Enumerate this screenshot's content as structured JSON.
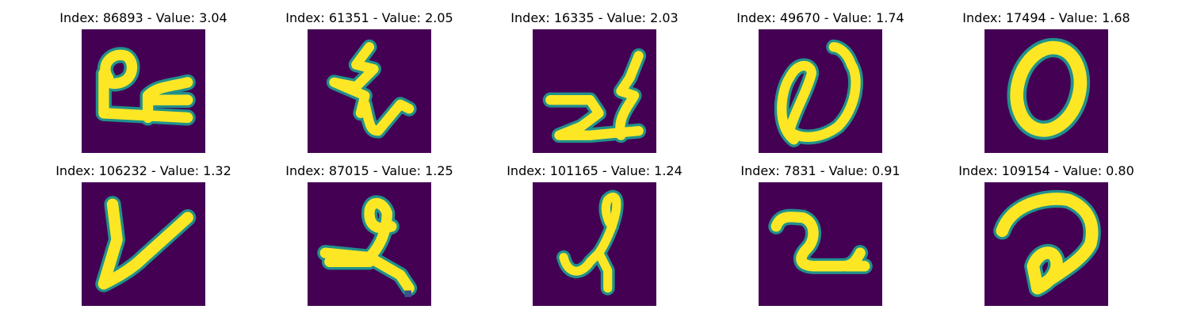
{
  "colors": {
    "background": "#440154",
    "outer_stroke": "#21918c",
    "inner_stroke": "#fde725"
  },
  "panels": [
    {
      "title": "Index: 86893 - Value: 3.04"
    },
    {
      "title": "Index: 61351 - Value: 2.05"
    },
    {
      "title": "Index: 16335 - Value: 2.03"
    },
    {
      "title": "Index: 49670 - Value: 1.74"
    },
    {
      "title": "Index: 17494 - Value: 1.68"
    },
    {
      "title": "Index: 106232 - Value: 1.32"
    },
    {
      "title": "Index: 87015 - Value: 1.25"
    },
    {
      "title": "Index: 101165 - Value: 1.24"
    },
    {
      "title": "Index: 7831 - Value: 0.91"
    },
    {
      "title": "Index: 109154 - Value: 0.80"
    }
  ]
}
